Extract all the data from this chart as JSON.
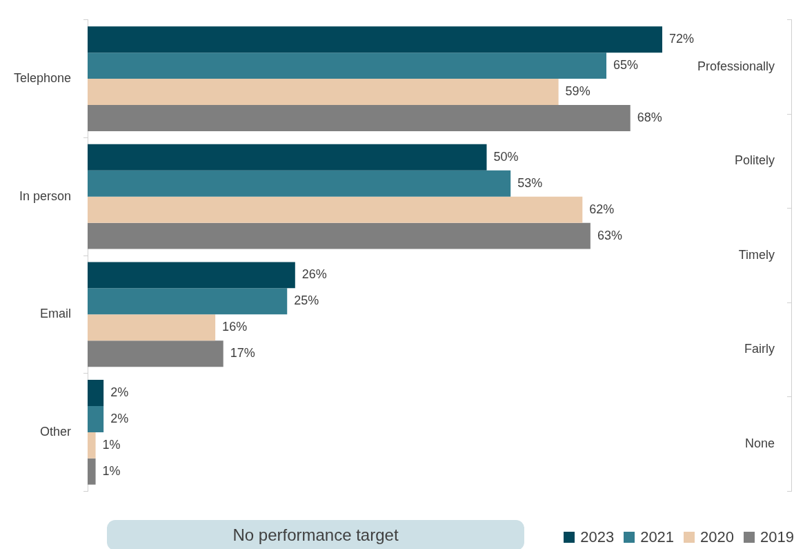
{
  "chart_data": [
    {
      "type": "bar",
      "orientation": "horizontal",
      "categories": [
        "Telephone",
        "In person",
        "Email",
        "Other"
      ],
      "series": [
        {
          "name": "2023",
          "color": "#02475a",
          "values": [
            72,
            50,
            26,
            2
          ],
          "value_labels": [
            "72%",
            "50%",
            "26%",
            "2%"
          ]
        },
        {
          "name": "2021",
          "color": "#337d8f",
          "values": [
            65,
            53,
            25,
            2
          ],
          "value_labels": [
            "65%",
            "53%",
            "25%",
            "2%"
          ]
        },
        {
          "name": "2020",
          "color": "#eacaab",
          "values": [
            59,
            62,
            16,
            1
          ],
          "value_labels": [
            "59%",
            "62%",
            "16%",
            "1%"
          ]
        },
        {
          "name": "2019",
          "color": "#7f7f7f",
          "values": [
            68,
            63,
            17,
            1
          ],
          "value_labels": [
            "68%",
            "63%",
            "17%",
            "1%"
          ]
        }
      ],
      "legend": "bottom right",
      "grid": false,
      "annotations": [
        "No performance target"
      ]
    },
    {
      "type": "other",
      "categories": [
        "Professionally",
        "Politely",
        "Timely",
        "Fairly",
        "None"
      ]
    }
  ]
}
